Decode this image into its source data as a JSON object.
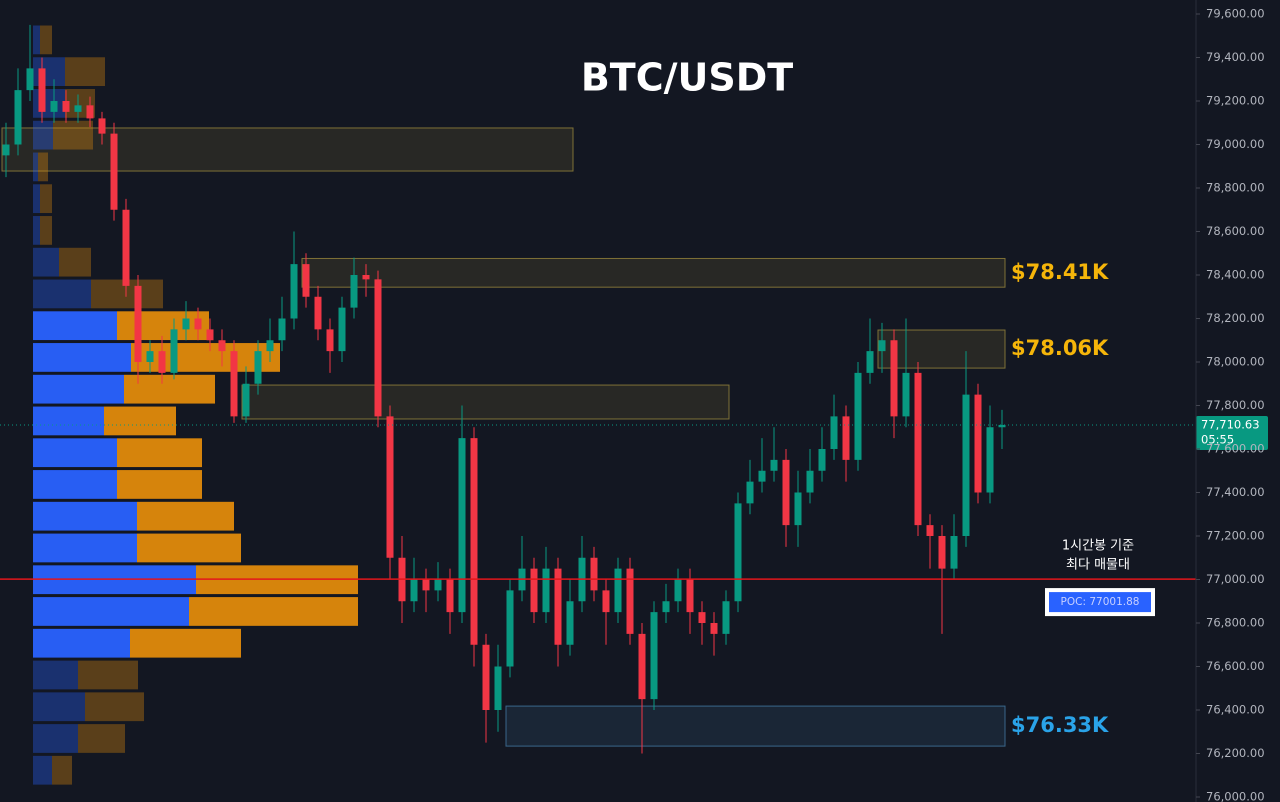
{
  "chart_data": {
    "type": "candlestick",
    "title": "BTC/USDT",
    "up_color": "#089981",
    "down_color": "#f23645",
    "ylim": [
      76000,
      79600
    ],
    "yticks": [
      {
        "value": 76000,
        "label": "76,000.00"
      },
      {
        "value": 76200,
        "label": "76,200.00"
      },
      {
        "value": 76400,
        "label": "76,400.00"
      },
      {
        "value": 76600,
        "label": "76,600.00"
      },
      {
        "value": 76800,
        "label": "76,800.00"
      },
      {
        "value": 77000,
        "label": "77,000.00"
      },
      {
        "value": 77200,
        "label": "77,200.00"
      },
      {
        "value": 77400,
        "label": "77,400.00"
      },
      {
        "value": 77600,
        "label": "77,600.00"
      },
      {
        "value": 77800,
        "label": "77,800.00"
      },
      {
        "value": 78000,
        "label": "78,000.00"
      },
      {
        "value": 78200,
        "label": "78,200.00"
      },
      {
        "value": 78400,
        "label": "78,400.00"
      },
      {
        "value": 78600,
        "label": "78,600.00"
      },
      {
        "value": 78800,
        "label": "78,800.00"
      },
      {
        "value": 79000,
        "label": "79,000.00"
      },
      {
        "value": 79200,
        "label": "79,200.00"
      },
      {
        "value": 79400,
        "label": "79,400.00"
      },
      {
        "value": 79600,
        "label": "79,600.00"
      }
    ],
    "open": [
      78950,
      79000,
      79250,
      79350,
      79150,
      79200,
      79150,
      79180,
      79120,
      79050,
      78700,
      78350,
      78000,
      78050,
      77950,
      78150,
      78200,
      78150,
      78100,
      78050,
      77750,
      77900,
      78050,
      78100,
      78200,
      78450,
      78300,
      78150,
      78050,
      78250,
      78400,
      78380,
      77750,
      77100,
      76900,
      77000,
      76950,
      77000,
      76850,
      77650,
      76700,
      76400,
      76600,
      76950,
      77050,
      76850,
      77050,
      76700,
      76900,
      77100,
      76950,
      76850,
      77050,
      76750,
      76450,
      76850,
      76900,
      77000,
      76850,
      76800,
      76750,
      76900,
      77350,
      77450,
      77500,
      77550,
      77250,
      77400,
      77500,
      77600,
      77750,
      77550,
      77950,
      78050,
      78100,
      77750,
      77950,
      77250,
      77200,
      77050,
      77200,
      77850,
      77400,
      77700
    ],
    "high": [
      79100,
      79350,
      79550,
      79400,
      79300,
      79250,
      79230,
      79220,
      79150,
      79100,
      78750,
      78400,
      78100,
      78120,
      78200,
      78280,
      78250,
      78200,
      78150,
      78100,
      77980,
      78100,
      78200,
      78300,
      78600,
      78500,
      78350,
      78200,
      78300,
      78480,
      78450,
      78420,
      77800,
      77200,
      77100,
      77050,
      77080,
      77050,
      77800,
      77700,
      76750,
      76700,
      77000,
      77200,
      77100,
      77150,
      77100,
      77000,
      77200,
      77150,
      77000,
      77100,
      77100,
      76800,
      76900,
      76980,
      77050,
      77050,
      76900,
      76850,
      76950,
      77400,
      77550,
      77650,
      77700,
      77600,
      77500,
      77600,
      77700,
      77850,
      77800,
      78000,
      78200,
      78180,
      78150,
      78200,
      78000,
      77300,
      77250,
      77300,
      78050,
      77900,
      77800,
      77780
    ],
    "low": [
      78850,
      78950,
      79200,
      79100,
      79100,
      79100,
      79100,
      79080,
      79000,
      78650,
      78300,
      77900,
      77950,
      77900,
      77920,
      78100,
      78100,
      78050,
      77980,
      77720,
      77720,
      77850,
      78000,
      78050,
      78150,
      78250,
      78100,
      77950,
      78000,
      78200,
      78300,
      77700,
      77000,
      76800,
      76850,
      76850,
      76900,
      76750,
      76800,
      76600,
      76250,
      76300,
      76550,
      76900,
      76800,
      76800,
      76600,
      76650,
      76850,
      76900,
      76700,
      76800,
      76700,
      76200,
      76400,
      76800,
      76850,
      76750,
      76700,
      76650,
      76700,
      76850,
      77300,
      77400,
      77450,
      77150,
      77150,
      77350,
      77450,
      77550,
      77450,
      77500,
      77900,
      77950,
      77650,
      77700,
      77200,
      77050,
      76750,
      77000,
      77150,
      77350,
      77350,
      77600
    ],
    "close": [
      79000,
      79250,
      79350,
      79150,
      79200,
      79150,
      79180,
      79120,
      79050,
      78700,
      78350,
      78000,
      78050,
      77950,
      78150,
      78200,
      78150,
      78100,
      78050,
      77750,
      77900,
      78050,
      78100,
      78200,
      78450,
      78300,
      78150,
      78050,
      78250,
      78400,
      78380,
      77750,
      77100,
      76900,
      77000,
      76950,
      77000,
      76850,
      77650,
      76700,
      76400,
      76600,
      76950,
      77050,
      76850,
      77050,
      76700,
      76900,
      77100,
      76950,
      76850,
      77050,
      76750,
      76450,
      76850,
      76900,
      77000,
      76850,
      76800,
      76750,
      76900,
      77350,
      77450,
      77500,
      77550,
      77250,
      77400,
      77500,
      77600,
      77750,
      77550,
      77950,
      78050,
      78100,
      77750,
      77950,
      77250,
      77200,
      77050,
      77200,
      77850,
      77400,
      77700,
      77710.63
    ],
    "volume_profile": {
      "bins": [
        76050,
        76196,
        76342,
        76488,
        76634,
        76780,
        76926,
        77072,
        77218,
        77364,
        77510,
        77656,
        77802,
        77948,
        78094,
        78240,
        78386,
        78532,
        78678,
        78824,
        78970,
        79116,
        79262,
        79408,
        79554
      ],
      "buy": [
        19,
        45,
        52,
        45,
        97,
        156,
        163,
        104,
        104,
        84,
        84,
        71,
        91,
        98,
        84,
        58,
        26,
        7,
        7,
        5,
        20,
        32,
        32,
        7
      ],
      "sell": [
        20,
        47,
        59,
        60,
        111,
        169,
        162,
        104,
        97,
        85,
        85,
        72,
        91,
        149,
        92,
        72,
        32,
        12,
        12,
        10,
        40,
        30,
        40,
        12
      ],
      "buy_color": "#2962ff",
      "sell_color": "#e08a0c",
      "value_area": [
        76634,
        78240
      ]
    },
    "poc": {
      "value": 77001.88,
      "label": "POC: 77001.88",
      "color": "#e3161b"
    },
    "annotation": [
      "1시간봉 기준",
      "최다 매물대"
    ],
    "zones": [
      {
        "low": 78878,
        "high": 79076,
        "from_index": 0,
        "to_index": 47,
        "color": "#8a7a3a"
      },
      {
        "low": 77738,
        "high": 77894,
        "from_index": 20,
        "to_index": 60,
        "color": "#8a7a3a"
      },
      {
        "low": 78344,
        "high": 78476,
        "from_index": 25,
        "to_index": 83,
        "color": "#8a7a3a",
        "label": "$78.41K",
        "label_color": "#f5b50a"
      },
      {
        "low": 77972,
        "high": 78147,
        "from_index": 73,
        "to_index": 83,
        "color": "#8a7a3a",
        "label": "$78.06K",
        "label_color": "#f5b50a"
      },
      {
        "low": 76234,
        "high": 76418,
        "from_index": 42,
        "to_index": 83,
        "color": "#3d6f96",
        "label": "$76.33K",
        "label_color": "#2aa3e8"
      }
    ],
    "last_price": {
      "value": 77710.63,
      "label": "77,710.63"
    },
    "countdown": "05:55"
  }
}
